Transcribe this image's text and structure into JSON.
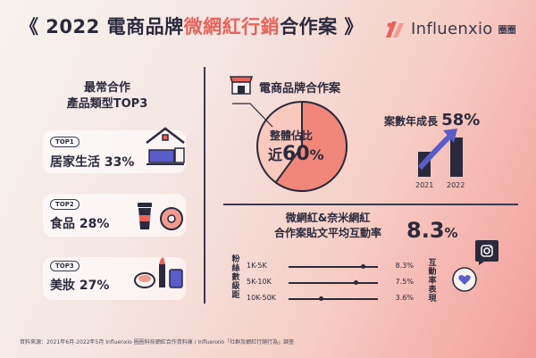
{
  "header": {
    "title_open": "《 2022 電商品牌",
    "title_highlight": "微網紅行銷",
    "title_close": "合作案 》",
    "logo_text": "Influenxio",
    "logo_badge": "圈圈",
    "brand_color": "#e8635a"
  },
  "left": {
    "heading_line1": "最常合作",
    "heading_line2": "產品類型TOP3",
    "items": [
      {
        "tag": "TOP1",
        "label": "居家生活 33%",
        "icon": "house-icon"
      },
      {
        "tag": "TOP2",
        "label": "食品 28%",
        "icon": "food-icon"
      },
      {
        "tag": "TOP3",
        "label": "美妝 27%",
        "icon": "makeup-icon"
      }
    ]
  },
  "share": {
    "label": "電商品牌合作案",
    "share_label": "整體佔比",
    "prefix": "近",
    "value": "60",
    "unit": "%",
    "fraction": 0.6
  },
  "growth": {
    "label": "案數年成長",
    "value": "58%",
    "years": [
      "2021",
      "2022"
    ],
    "relative_bars": [
      0.56,
      0.88
    ]
  },
  "engagement": {
    "heading_line1": "微網紅&奈米網紅",
    "heading_line2": "合作案貼文平均互動率",
    "rate": "8.3",
    "rate_unit": "%",
    "axis_left": [
      "粉",
      "絲",
      "數",
      "級",
      "距"
    ],
    "axis_right": [
      "互",
      "動",
      "率",
      "表",
      "現"
    ],
    "rows": [
      {
        "range": "1K-5K",
        "value": "8.3%",
        "num": 8.3
      },
      {
        "range": "5K-10K",
        "value": "7.5%",
        "num": 7.5
      },
      {
        "range": "10K-50K",
        "value": "3.6%",
        "num": 3.6
      }
    ]
  },
  "footnote": "資料來源：2021年6月-2022年5月 Influenxio 圈圈科技網紅合作資料庫 / Influenxio「社群及網紅行銷行為」調查"
}
